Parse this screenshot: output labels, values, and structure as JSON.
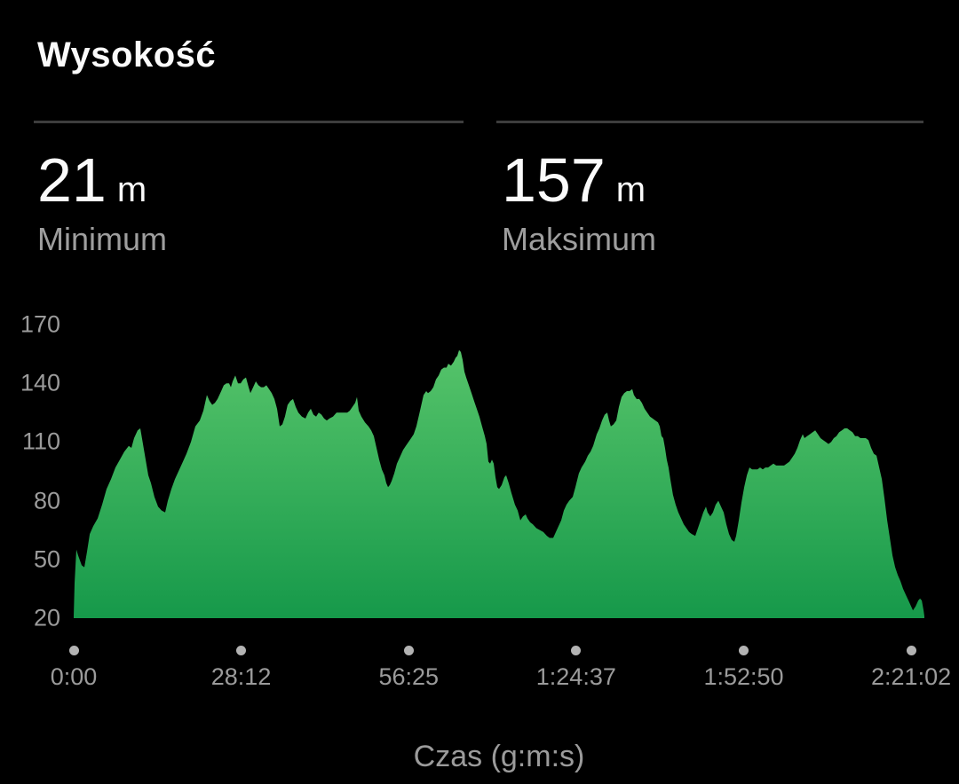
{
  "page": {
    "title": "Wysokość",
    "background": "#000000"
  },
  "stats": {
    "minimum": {
      "value": "21",
      "unit": "m",
      "label": "Minimum"
    },
    "maximum": {
      "value": "157",
      "unit": "m",
      "label": "Maksimum"
    }
  },
  "colors": {
    "background": "#000000",
    "title_text": "#fafafa",
    "secondary_text": "#9e9e9e",
    "axis_text": "#9b9b9b",
    "divider": "#3d3d3d",
    "tick_dot": "#b3b3b3",
    "area_fill_top": "#58c56b",
    "area_fill_bottom": "#16994a"
  },
  "chart_data": {
    "type": "area",
    "title": "Wysokość",
    "xlabel": "Czas (g:m:s)",
    "ylabel": "m",
    "ylim": [
      20,
      170
    ],
    "y_ticks": [
      170,
      140,
      110,
      80,
      50,
      20
    ],
    "x_ticks": [
      {
        "t": 0,
        "label": "0:00"
      },
      {
        "t": 1692,
        "label": "28:12"
      },
      {
        "t": 3385,
        "label": "56:25"
      },
      {
        "t": 5077,
        "label": "1:24:37"
      },
      {
        "t": 6770,
        "label": "1:52:50"
      },
      {
        "t": 8462,
        "label": "2:21:02"
      }
    ],
    "t_end": 8596,
    "min_m": 21,
    "max_m": 157,
    "grid": false,
    "points": [
      [
        0,
        21
      ],
      [
        9,
        38
      ],
      [
        27,
        55
      ],
      [
        45,
        52
      ],
      [
        81,
        47
      ],
      [
        108,
        46
      ],
      [
        135,
        54
      ],
      [
        162,
        63
      ],
      [
        197,
        67
      ],
      [
        242,
        71
      ],
      [
        287,
        78
      ],
      [
        332,
        86
      ],
      [
        377,
        91
      ],
      [
        422,
        97
      ],
      [
        467,
        101
      ],
      [
        511,
        105
      ],
      [
        556,
        108
      ],
      [
        583,
        107
      ],
      [
        610,
        112
      ],
      [
        646,
        116
      ],
      [
        673,
        117
      ],
      [
        700,
        109
      ],
      [
        727,
        101
      ],
      [
        754,
        93
      ],
      [
        781,
        89
      ],
      [
        816,
        82
      ],
      [
        852,
        77
      ],
      [
        888,
        75
      ],
      [
        924,
        74
      ],
      [
        951,
        80
      ],
      [
        987,
        86
      ],
      [
        1023,
        91
      ],
      [
        1059,
        95
      ],
      [
        1095,
        99
      ],
      [
        1140,
        104
      ],
      [
        1184,
        110
      ],
      [
        1229,
        118
      ],
      [
        1274,
        121
      ],
      [
        1310,
        126
      ],
      [
        1346,
        134
      ],
      [
        1373,
        131
      ],
      [
        1400,
        129
      ],
      [
        1427,
        130
      ],
      [
        1454,
        132
      ],
      [
        1490,
        136
      ],
      [
        1516,
        139
      ],
      [
        1543,
        140
      ],
      [
        1570,
        140
      ],
      [
        1588,
        138
      ],
      [
        1606,
        141
      ],
      [
        1633,
        144
      ],
      [
        1660,
        140
      ],
      [
        1687,
        140
      ],
      [
        1714,
        142
      ],
      [
        1741,
        143
      ],
      [
        1768,
        138
      ],
      [
        1786,
        135
      ],
      [
        1813,
        138
      ],
      [
        1840,
        141
      ],
      [
        1866,
        139
      ],
      [
        1893,
        138
      ],
      [
        1920,
        138
      ],
      [
        1947,
        139
      ],
      [
        1974,
        137
      ],
      [
        2001,
        135
      ],
      [
        2028,
        132
      ],
      [
        2055,
        127
      ],
      [
        2082,
        118
      ],
      [
        2109,
        119
      ],
      [
        2135,
        123
      ],
      [
        2162,
        129
      ],
      [
        2189,
        131
      ],
      [
        2216,
        132
      ],
      [
        2243,
        128
      ],
      [
        2270,
        125
      ],
      [
        2306,
        123
      ],
      [
        2342,
        122
      ],
      [
        2369,
        125
      ],
      [
        2396,
        127
      ],
      [
        2423,
        124
      ],
      [
        2450,
        123
      ],
      [
        2476,
        125
      ],
      [
        2503,
        124
      ],
      [
        2530,
        122
      ],
      [
        2557,
        121
      ],
      [
        2584,
        122
      ],
      [
        2620,
        123
      ],
      [
        2656,
        125
      ],
      [
        2692,
        125
      ],
      [
        2728,
        125
      ],
      [
        2764,
        125
      ],
      [
        2790,
        126
      ],
      [
        2817,
        128
      ],
      [
        2844,
        130
      ],
      [
        2862,
        133
      ],
      [
        2880,
        126
      ],
      [
        2907,
        123
      ],
      [
        2943,
        120
      ],
      [
        2979,
        118
      ],
      [
        3006,
        116
      ],
      [
        3033,
        113
      ],
      [
        3060,
        107
      ],
      [
        3087,
        101
      ],
      [
        3114,
        96
      ],
      [
        3140,
        93
      ],
      [
        3158,
        89
      ],
      [
        3176,
        87
      ],
      [
        3194,
        88
      ],
      [
        3212,
        90
      ],
      [
        3239,
        94
      ],
      [
        3266,
        99
      ],
      [
        3293,
        102
      ],
      [
        3329,
        106
      ],
      [
        3356,
        108
      ],
      [
        3383,
        110
      ],
      [
        3410,
        112
      ],
      [
        3436,
        114
      ],
      [
        3463,
        118
      ],
      [
        3490,
        124
      ],
      [
        3517,
        130
      ],
      [
        3535,
        134
      ],
      [
        3562,
        136
      ],
      [
        3580,
        135
      ],
      [
        3607,
        136
      ],
      [
        3634,
        138
      ],
      [
        3661,
        142
      ],
      [
        3688,
        144
      ],
      [
        3714,
        147
      ],
      [
        3741,
        148
      ],
      [
        3768,
        148
      ],
      [
        3786,
        150
      ],
      [
        3813,
        149
      ],
      [
        3840,
        151
      ],
      [
        3858,
        153
      ],
      [
        3876,
        154
      ],
      [
        3894,
        157
      ],
      [
        3912,
        156
      ],
      [
        3930,
        152
      ],
      [
        3948,
        146
      ],
      [
        3966,
        143
      ],
      [
        3993,
        139
      ],
      [
        4020,
        135
      ],
      [
        4046,
        131
      ],
      [
        4073,
        127
      ],
      [
        4100,
        123
      ],
      [
        4127,
        118
      ],
      [
        4154,
        113
      ],
      [
        4172,
        109
      ],
      [
        4190,
        100
      ],
      [
        4208,
        99
      ],
      [
        4226,
        101
      ],
      [
        4244,
        99
      ],
      [
        4262,
        92
      ],
      [
        4280,
        87
      ],
      [
        4298,
        86
      ],
      [
        4325,
        88
      ],
      [
        4352,
        92
      ],
      [
        4370,
        93
      ],
      [
        4396,
        89
      ],
      [
        4423,
        84
      ],
      [
        4459,
        78
      ],
      [
        4486,
        75
      ],
      [
        4513,
        70
      ],
      [
        4540,
        72
      ],
      [
        4567,
        73
      ],
      [
        4585,
        71
      ],
      [
        4612,
        69
      ],
      [
        4639,
        68
      ],
      [
        4675,
        66
      ],
      [
        4711,
        65
      ],
      [
        4746,
        64
      ],
      [
        4782,
        62
      ],
      [
        4809,
        61
      ],
      [
        4845,
        61
      ],
      [
        4872,
        64
      ],
      [
        4899,
        67
      ],
      [
        4926,
        70
      ],
      [
        4953,
        75
      ],
      [
        4980,
        78
      ],
      [
        5007,
        80
      ],
      [
        5043,
        82
      ],
      [
        5070,
        87
      ],
      [
        5105,
        94
      ],
      [
        5132,
        97
      ],
      [
        5168,
        100
      ],
      [
        5195,
        103
      ],
      [
        5222,
        105
      ],
      [
        5249,
        108
      ],
      [
        5285,
        114
      ],
      [
        5312,
        117
      ],
      [
        5339,
        121
      ],
      [
        5366,
        124
      ],
      [
        5392,
        125
      ],
      [
        5410,
        121
      ],
      [
        5428,
        118
      ],
      [
        5455,
        119
      ],
      [
        5482,
        121
      ],
      [
        5509,
        128
      ],
      [
        5536,
        133
      ],
      [
        5563,
        135
      ],
      [
        5590,
        136
      ],
      [
        5617,
        136
      ],
      [
        5644,
        137
      ],
      [
        5661,
        134
      ],
      [
        5688,
        132
      ],
      [
        5715,
        132
      ],
      [
        5742,
        130
      ],
      [
        5769,
        127
      ],
      [
        5796,
        125
      ],
      [
        5823,
        123
      ],
      [
        5850,
        122
      ],
      [
        5877,
        121
      ],
      [
        5904,
        120
      ],
      [
        5922,
        118
      ],
      [
        5940,
        113
      ],
      [
        5957,
        112
      ],
      [
        5975,
        107
      ],
      [
        5993,
        101
      ],
      [
        6011,
        97
      ],
      [
        6029,
        91
      ],
      [
        6056,
        83
      ],
      [
        6083,
        78
      ],
      [
        6110,
        74
      ],
      [
        6137,
        71
      ],
      [
        6164,
        68
      ],
      [
        6191,
        66
      ],
      [
        6218,
        64
      ],
      [
        6245,
        63
      ],
      [
        6281,
        62
      ],
      [
        6308,
        66
      ],
      [
        6335,
        70
      ],
      [
        6362,
        74
      ],
      [
        6389,
        77
      ],
      [
        6406,
        74
      ],
      [
        6433,
        72
      ],
      [
        6460,
        74
      ],
      [
        6487,
        78
      ],
      [
        6514,
        80
      ],
      [
        6541,
        77
      ],
      [
        6568,
        74
      ],
      [
        6595,
        68
      ],
      [
        6622,
        63
      ],
      [
        6649,
        60
      ],
      [
        6676,
        59
      ],
      [
        6694,
        62
      ],
      [
        6721,
        70
      ],
      [
        6748,
        79
      ],
      [
        6775,
        87
      ],
      [
        6802,
        93
      ],
      [
        6828,
        97
      ],
      [
        6855,
        96
      ],
      [
        6882,
        96
      ],
      [
        6909,
        96
      ],
      [
        6936,
        97
      ],
      [
        6963,
        96
      ],
      [
        6990,
        97
      ],
      [
        7017,
        97
      ],
      [
        7044,
        98
      ],
      [
        7071,
        99
      ],
      [
        7098,
        98
      ],
      [
        7125,
        98
      ],
      [
        7152,
        98
      ],
      [
        7178,
        98
      ],
      [
        7205,
        99
      ],
      [
        7232,
        100
      ],
      [
        7259,
        102
      ],
      [
        7286,
        104
      ],
      [
        7313,
        107
      ],
      [
        7340,
        111
      ],
      [
        7367,
        114
      ],
      [
        7385,
        112
      ],
      [
        7412,
        113
      ],
      [
        7439,
        114
      ],
      [
        7466,
        115
      ],
      [
        7493,
        116
      ],
      [
        7520,
        114
      ],
      [
        7546,
        112
      ],
      [
        7573,
        111
      ],
      [
        7600,
        110
      ],
      [
        7627,
        109
      ],
      [
        7654,
        110
      ],
      [
        7681,
        112
      ],
      [
        7708,
        113
      ],
      [
        7735,
        115
      ],
      [
        7762,
        116
      ],
      [
        7789,
        117
      ],
      [
        7816,
        117
      ],
      [
        7843,
        116
      ],
      [
        7870,
        115
      ],
      [
        7896,
        113
      ],
      [
        7923,
        113
      ],
      [
        7950,
        112
      ],
      [
        7977,
        112
      ],
      [
        8004,
        112
      ],
      [
        8031,
        111
      ],
      [
        8058,
        107
      ],
      [
        8085,
        104
      ],
      [
        8112,
        103
      ],
      [
        8139,
        97
      ],
      [
        8166,
        91
      ],
      [
        8193,
        81
      ],
      [
        8220,
        70
      ],
      [
        8247,
        61
      ],
      [
        8274,
        52
      ],
      [
        8301,
        46
      ],
      [
        8328,
        42
      ],
      [
        8354,
        39
      ],
      [
        8381,
        35
      ],
      [
        8408,
        32
      ],
      [
        8435,
        29
      ],
      [
        8462,
        26
      ],
      [
        8480,
        24
      ],
      [
        8507,
        26
      ],
      [
        8534,
        29
      ],
      [
        8552,
        30
      ],
      [
        8570,
        29
      ],
      [
        8588,
        24
      ],
      [
        8596,
        21
      ]
    ]
  }
}
